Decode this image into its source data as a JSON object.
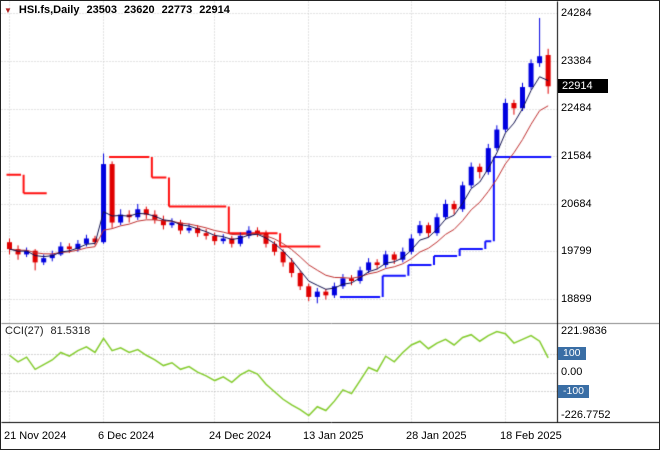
{
  "ui": {
    "title": {
      "symbol": "HSI.fs,Daily",
      "open": "23503",
      "high": "23620",
      "low": "22773",
      "close": "22914"
    },
    "cci_label": "CCI(27)",
    "cci_value": "81.5318",
    "price_labels": [
      "24284",
      "23384",
      "22484",
      "21584",
      "20684",
      "19799",
      "18899"
    ],
    "current_price_label": "22914",
    "cci_scale": {
      "max": "221.9836",
      "p100": "100",
      "zero": "0.00",
      "m100": "-100",
      "min": "-226.7752"
    },
    "time_labels": [
      "21 Nov 2024",
      "6 Dec 2024",
      "24 Dec 2024",
      "13 Jan 2025",
      "28 Jan 2025",
      "18 Feb 2025"
    ]
  },
  "colors": {
    "up": "#0000e0",
    "down": "#e00000",
    "ma_fast": "#10104e",
    "ma_slow": "#c03030",
    "trail_red": "#ff1010",
    "trail_blue": "#1010ff",
    "cci": "#84cc2e",
    "grid": "#c8c8c8",
    "level": "#aaaaaa",
    "splitter": "#888888",
    "axis_line": "#000000",
    "current_box": "#000000",
    "level_box": "#3a6ea5"
  },
  "chart_data": {
    "type": "candlestick",
    "title": "HSI.fs Daily with trailing stop, moving averages and CCI(27)",
    "symbol": "HSI.fs",
    "timeframe": "Daily",
    "last_ohlc": {
      "open": 23503,
      "high": 23620,
      "low": 22773,
      "close": 22914
    },
    "current_price": 22914,
    "price_axis_ticks": [
      24284,
      23384,
      22484,
      21584,
      20684,
      19799,
      18899
    ],
    "ylim": [
      18450,
      24510
    ],
    "time_ticks": [
      {
        "i": 0,
        "label": "21 Nov 2024"
      },
      {
        "i": 11,
        "label": "6 Dec 2024"
      },
      {
        "i": 24,
        "label": "24 Dec 2024"
      },
      {
        "i": 35,
        "label": "13 Jan 2025"
      },
      {
        "i": 47,
        "label": "28 Jan 2025"
      },
      {
        "i": 58,
        "label": "18 Feb 2025"
      }
    ],
    "candles": [
      [
        19980,
        20050,
        19750,
        19850
      ],
      [
        19850,
        19920,
        19650,
        19750
      ],
      [
        19750,
        19880,
        19700,
        19820
      ],
      [
        19820,
        19850,
        19450,
        19600
      ],
      [
        19600,
        19750,
        19550,
        19680
      ],
      [
        19680,
        19820,
        19620,
        19750
      ],
      [
        19750,
        19980,
        19720,
        19900
      ],
      [
        19900,
        19960,
        19780,
        19850
      ],
      [
        19850,
        20020,
        19800,
        19950
      ],
      [
        19950,
        20120,
        19900,
        20050
      ],
      [
        20050,
        20100,
        19920,
        19980
      ],
      [
        19980,
        21650,
        19950,
        21450
      ],
      [
        21450,
        21500,
        20250,
        20350
      ],
      [
        20350,
        20600,
        20300,
        20500
      ],
      [
        20500,
        20580,
        20350,
        20450
      ],
      [
        20450,
        20700,
        20400,
        20600
      ],
      [
        20600,
        20650,
        20420,
        20500
      ],
      [
        20500,
        20580,
        20330,
        20400
      ],
      [
        20400,
        20480,
        20220,
        20300
      ],
      [
        20300,
        20430,
        20250,
        20350
      ],
      [
        20350,
        20400,
        20130,
        20200
      ],
      [
        20200,
        20330,
        20150,
        20250
      ],
      [
        20250,
        20300,
        20080,
        20150
      ],
      [
        20150,
        20230,
        20030,
        20100
      ],
      [
        20100,
        20160,
        19930,
        20000
      ],
      [
        20000,
        20130,
        19950,
        20050
      ],
      [
        20050,
        20100,
        19880,
        19950
      ],
      [
        19950,
        20160,
        19900,
        20100
      ],
      [
        20100,
        20280,
        20050,
        20200
      ],
      [
        20200,
        20260,
        20080,
        20150
      ],
      [
        20150,
        20200,
        19880,
        19950
      ],
      [
        19950,
        20000,
        19730,
        19800
      ],
      [
        19800,
        19850,
        19520,
        19600
      ],
      [
        19600,
        19680,
        19320,
        19400
      ],
      [
        19400,
        19450,
        19080,
        19150
      ],
      [
        19150,
        19200,
        18870,
        18950
      ],
      [
        18950,
        19120,
        18830,
        19050
      ],
      [
        19050,
        19100,
        18900,
        18980
      ],
      [
        18980,
        19220,
        18930,
        19150
      ],
      [
        19150,
        19380,
        19100,
        19300
      ],
      [
        19300,
        19360,
        19170,
        19250
      ],
      [
        19250,
        19520,
        19200,
        19450
      ],
      [
        19450,
        19680,
        19400,
        19600
      ],
      [
        19600,
        19660,
        19470,
        19550
      ],
      [
        19550,
        19820,
        19500,
        19750
      ],
      [
        19750,
        19800,
        19570,
        19650
      ],
      [
        19650,
        19880,
        19600,
        19800
      ],
      [
        19800,
        20130,
        19750,
        20050
      ],
      [
        20150,
        20380,
        20100,
        20300
      ],
      [
        20300,
        20350,
        20070,
        20150
      ],
      [
        20150,
        20520,
        20100,
        20450
      ],
      [
        20450,
        20780,
        20400,
        20700
      ],
      [
        20700,
        20760,
        20500,
        20600
      ],
      [
        20600,
        21120,
        20550,
        21050
      ],
      [
        21050,
        21480,
        21000,
        21400
      ],
      [
        21400,
        21460,
        21180,
        21300
      ],
      [
        21300,
        21830,
        21250,
        21750
      ],
      [
        21750,
        22180,
        21700,
        22100
      ],
      [
        22100,
        22680,
        22050,
        22600
      ],
      [
        22600,
        22660,
        22380,
        22500
      ],
      [
        22500,
        22980,
        22450,
        22900
      ],
      [
        22900,
        23420,
        22850,
        23350
      ],
      [
        23350,
        24200,
        23280,
        23480
      ],
      [
        23503,
        23620,
        22773,
        22914
      ]
    ],
    "overlays": {
      "fast_ma": {
        "type": "ema",
        "period": 4,
        "color_key": "ma_fast"
      },
      "slow_ma": {
        "type": "ema",
        "period": 9,
        "color_key": "ma_slow"
      },
      "trail_segments": [
        {
          "color": "trail_red",
          "steps": [
            [
              0,
              1,
              21250
            ],
            [
              2,
              4,
              20900
            ]
          ]
        },
        {
          "color": "trail_red",
          "steps": [
            [
              12,
              16,
              21584
            ],
            [
              17,
              18,
              21200
            ],
            [
              19,
              25,
              20650
            ],
            [
              26,
              31,
              20150
            ],
            [
              32,
              36,
              19900
            ]
          ]
        },
        {
          "color": "trail_blue",
          "steps": [
            [
              39,
              43,
              18950
            ],
            [
              44,
              46,
              19350
            ],
            [
              47,
              49,
              19550
            ],
            [
              50,
              52,
              19720
            ],
            [
              53,
              55,
              19850
            ],
            [
              56,
              56,
              20000
            ],
            [
              57,
              63,
              21584
            ]
          ]
        }
      ]
    },
    "indicator": {
      "name": "CCI",
      "period": 27,
      "last_value": 81.5318,
      "scale_max": 221.9836,
      "scale_min": -226.7752,
      "levels": [
        100,
        0,
        -100
      ],
      "ylim": [
        -258.8,
        259.4
      ],
      "values": [
        95,
        60,
        85,
        20,
        45,
        70,
        110,
        90,
        120,
        140,
        110,
        185,
        120,
        135,
        110,
        125,
        95,
        70,
        40,
        55,
        20,
        35,
        5,
        -15,
        -40,
        -20,
        -50,
        -10,
        15,
        -5,
        -60,
        -100,
        -140,
        -170,
        -195,
        -226.7752,
        -180,
        -200,
        -150,
        -90,
        -110,
        -40,
        30,
        10,
        90,
        60,
        110,
        150,
        170,
        130,
        160,
        180,
        150,
        190,
        205,
        170,
        200,
        221.9836,
        210,
        160,
        180,
        200,
        170,
        81.5318
      ]
    }
  }
}
